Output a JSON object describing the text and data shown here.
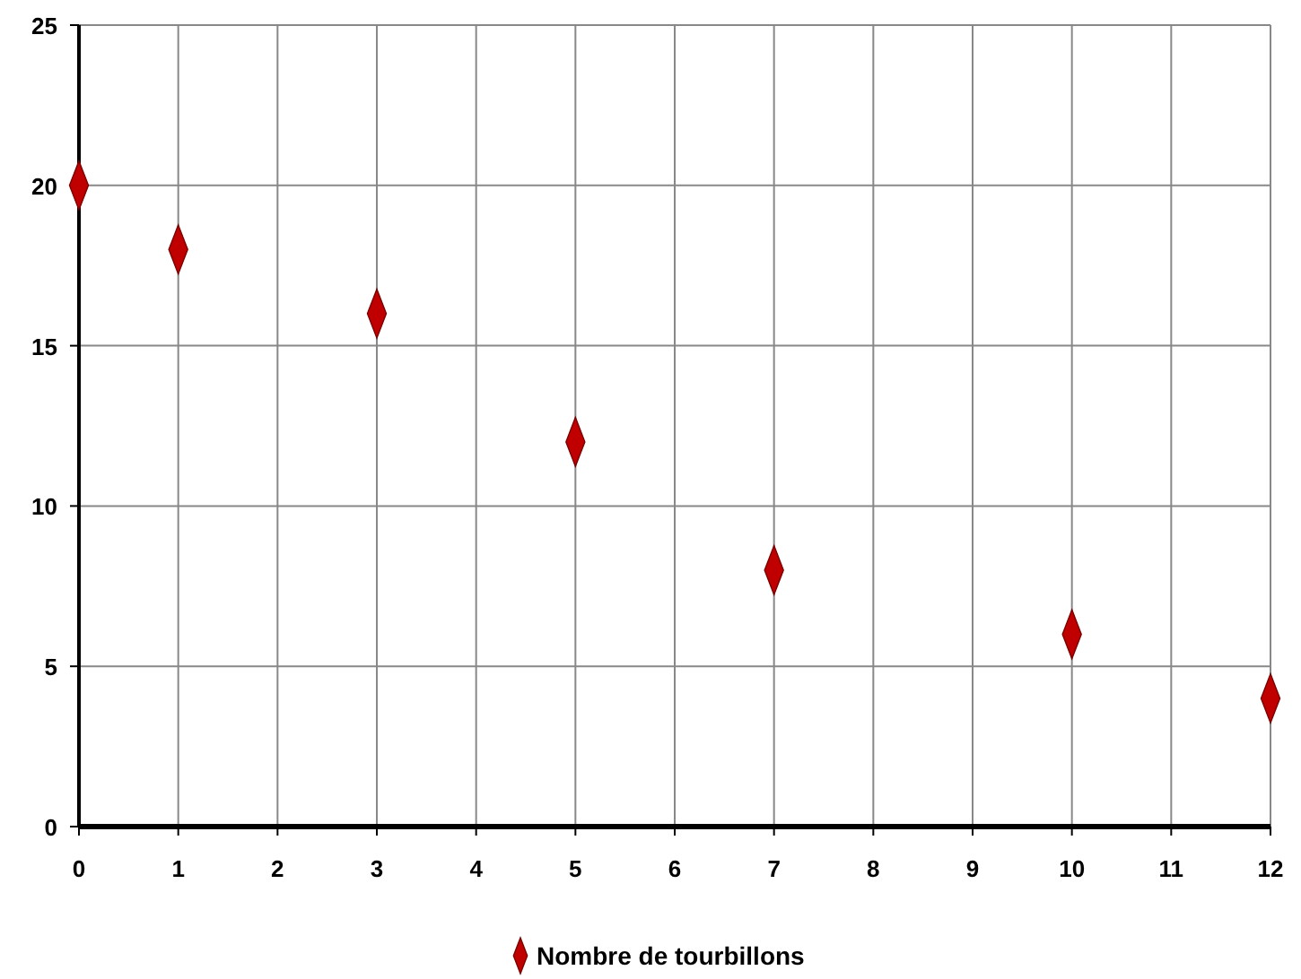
{
  "chart_data": {
    "type": "scatter",
    "x": [
      0,
      1,
      3,
      5,
      7,
      10,
      12
    ],
    "series": [
      {
        "name": "Nombre de tourbillons",
        "color": "#c00000",
        "values": [
          20,
          18,
          16,
          12,
          8,
          6,
          4
        ]
      }
    ],
    "xlim": [
      0,
      12
    ],
    "xticks": [
      0,
      1,
      2,
      3,
      4,
      5,
      6,
      7,
      8,
      9,
      10,
      11,
      12
    ],
    "ylim": [
      0,
      25
    ],
    "yticks": [
      0,
      5,
      10,
      15,
      20,
      25
    ],
    "grid": true,
    "legend": "bottom",
    "marker": "diamond"
  }
}
